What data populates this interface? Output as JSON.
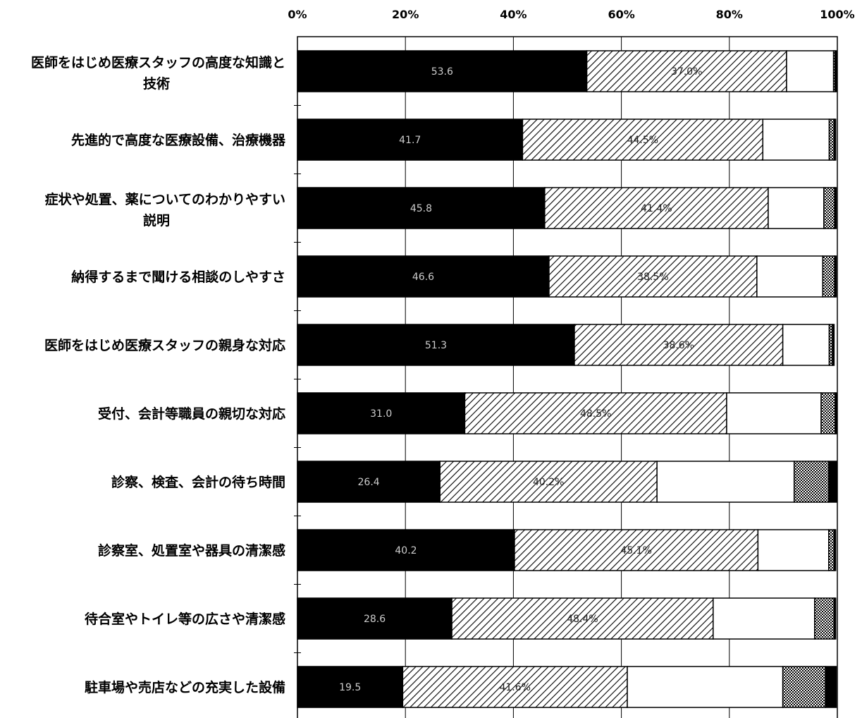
{
  "chart_data": {
    "type": "bar",
    "orientation": "horizontal",
    "stacked": true,
    "xlim": [
      0,
      100
    ],
    "x_ticks": [
      "0%",
      "20%",
      "40%",
      "60%",
      "80%",
      "100%"
    ],
    "grid": true,
    "categories": [
      [
        "医師をはじめ医療スタッフの高度な知識と",
        "技術"
      ],
      [
        "先進的で高度な医療設備、治療機器"
      ],
      [
        "症状や処置、薬についてのわかりやすい",
        "説明"
      ],
      [
        "納得するまで聞ける相談のしやすさ"
      ],
      [
        "医師をはじめ医療スタッフの親身な対応"
      ],
      [
        "受付、会計等職員の親切な対応"
      ],
      [
        "診察、検査、会計の待ち時間"
      ],
      [
        "診察室、処置室や器具の清潔感"
      ],
      [
        "待合室やトイレ等の広さや清潔感"
      ],
      [
        "駐車場や売店などの充実した設備"
      ]
    ],
    "series": [
      {
        "color": "#000000",
        "pattern": "solid",
        "values": [
          53.6,
          41.7,
          45.8,
          46.6,
          51.3,
          31.0,
          26.4,
          40.2,
          28.6,
          19.5
        ],
        "labels": [
          "53.6",
          "41.7",
          "45.8",
          "46.6",
          "51.3",
          "31.0",
          "26.4",
          "40.2",
          "28.6",
          "19.5"
        ]
      },
      {
        "color": "#000000",
        "pattern": "diagonal-hatch",
        "values": [
          37.0,
          44.5,
          41.4,
          38.5,
          38.6,
          48.5,
          40.2,
          45.1,
          48.4,
          41.6
        ],
        "labels": [
          "37.0%",
          "44.5%",
          "41.4%",
          "38.5%",
          "38.6%",
          "48.5%",
          "40.2%",
          "45.1%",
          "48.4%",
          "41.6%"
        ]
      },
      {
        "color": "#ffffff",
        "pattern": "blank",
        "values": [
          8.7,
          12.3,
          10.3,
          12.2,
          8.6,
          17.5,
          25.4,
          13.1,
          18.8,
          28.8
        ]
      },
      {
        "color": "#000000",
        "pattern": "dotted",
        "values": [
          0.3,
          0.9,
          2.0,
          2.2,
          0.6,
          2.6,
          6.4,
          1.0,
          3.6,
          7.9
        ]
      },
      {
        "color": "#000000",
        "pattern": "solid",
        "values": [
          0.3,
          0.3,
          0.3,
          0.3,
          0.3,
          0.3,
          1.5,
          0.3,
          0.3,
          2.0
        ]
      }
    ]
  }
}
